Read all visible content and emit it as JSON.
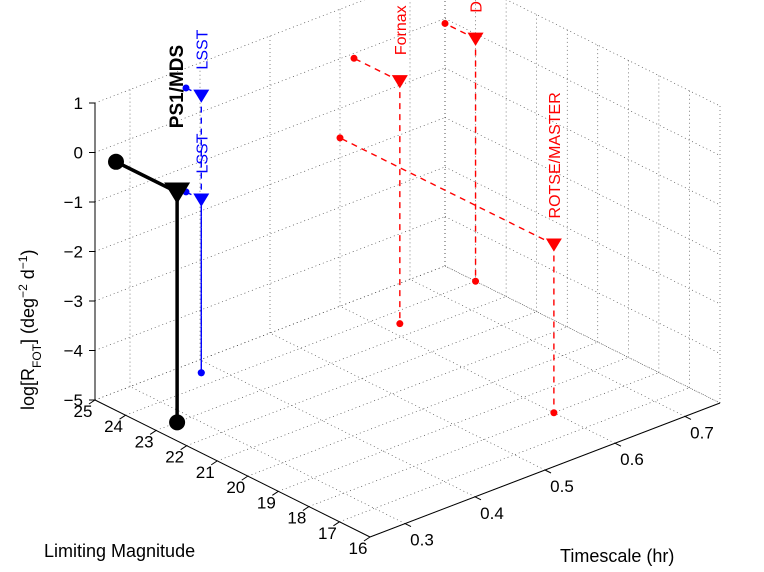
{
  "chart_data": {
    "type": "scatter3d",
    "title": "",
    "axes": {
      "x": {
        "label": "Limiting Magnitude",
        "range": [
          16,
          25
        ],
        "ticks": [
          "16",
          "17",
          "18",
          "19",
          "20",
          "21",
          "22",
          "23",
          "24",
          "25"
        ]
      },
      "y": {
        "label": "Timescale  (hr)",
        "range": [
          0.25,
          0.75
        ],
        "ticks": [
          "0.3",
          "0.4",
          "0.5",
          "0.6",
          "0.7"
        ]
      },
      "z": {
        "label_main": "log[R",
        "label_sub": "FOT",
        "label_rest": "]  (deg",
        "label_exp": "−2",
        "label_tail": " d",
        "label_exp2": "−1",
        "label_close": ")",
        "range": [
          -5,
          1
        ],
        "ticks": [
          "−5",
          "−4",
          "−3",
          "−2",
          "−1",
          "0",
          "1"
        ]
      }
    },
    "grid": true,
    "series": [
      {
        "name": "DLS",
        "color": "#ff0000",
        "line": "dashed",
        "marker_size": "small",
        "limiting_magnitude": 24,
        "timescale": 0.75,
        "log_rate": -0.1,
        "mag_projection": 25,
        "time_projection": 0.25
      },
      {
        "name": "Fornax",
        "color": "#ff0000",
        "line": "dashed",
        "marker_size": "small",
        "limiting_magnitude": 23.5,
        "timescale": 0.62,
        "log_rate": -0.1,
        "mag_projection": 25,
        "time_projection": 0.25
      },
      {
        "name": "LSST",
        "color": "#0000ff",
        "line": "dashed",
        "marker_size": "small",
        "limiting_magnitude": 24.5,
        "timescale": 0.38,
        "log_rate": 0.6,
        "mag_projection": 25,
        "time_projection": 0.25
      },
      {
        "name": "LSST",
        "color": "#0000ff",
        "line": "dashed",
        "marker_size": "small",
        "limiting_magnitude": 24.5,
        "timescale": 0.38,
        "log_rate": -1.5,
        "mag_projection": 25,
        "time_projection": 0.25
      },
      {
        "name": "ROTSE/MASTER",
        "color": "#ff0000",
        "line": "dashed",
        "marker_size": "small",
        "limiting_magnitude": 18,
        "timescale": 0.6,
        "log_rate": -1.6,
        "mag_projection": 25,
        "time_projection": 0.25
      },
      {
        "name": "PS1/MDS",
        "color": "#000000",
        "line": "solid",
        "marker_size": "large",
        "limiting_magnitude": 23,
        "timescale": 0.28,
        "log_rate": -0.35,
        "mag_projection": 25,
        "time_projection": 0.25
      }
    ]
  }
}
